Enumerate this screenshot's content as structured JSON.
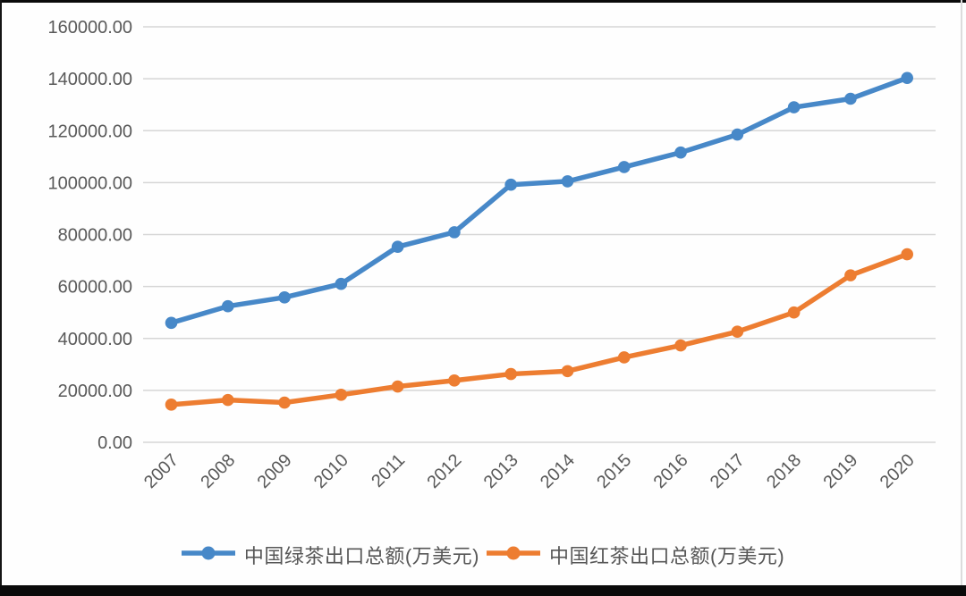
{
  "page": {
    "background": "#fefefe",
    "top_edge_color": "#0a0a0a",
    "bottom_bar_color": "#0a0a0a",
    "right_edge_color": "#dcdcdc"
  },
  "chart_data": {
    "type": "line",
    "title": "",
    "xlabel": "",
    "ylabel": "",
    "categories": [
      "2007",
      "2008",
      "2009",
      "2010",
      "2011",
      "2012",
      "2013",
      "2014",
      "2015",
      "2016",
      "2017",
      "2018",
      "2019",
      "2020"
    ],
    "series": [
      {
        "name": "中国绿茶出口总额(万美元)",
        "color": "#4788c8",
        "marker": "circle",
        "values": [
          46000,
          52400,
          55800,
          61000,
          75300,
          80900,
          99200,
          100500,
          106000,
          111600,
          118500,
          129000,
          132300,
          140300
        ]
      },
      {
        "name": "中国红茶出口总额(万美元)",
        "color": "#ed7d31",
        "marker": "circle",
        "values": [
          14500,
          16300,
          15300,
          18300,
          21500,
          23800,
          26300,
          27400,
          32700,
          37300,
          42600,
          50000,
          64300,
          72400
        ]
      }
    ],
    "ylim": [
      0,
      160000
    ],
    "ytick_step": 20000,
    "ytick_labels": [
      "0.00",
      "20000.00",
      "40000.00",
      "60000.00",
      "80000.00",
      "100000.00",
      "120000.00",
      "140000.00",
      "160000.00"
    ],
    "grid": true,
    "gridline_color": "#d6d6d6",
    "axis_text_color": "#595959",
    "legend_position": "bottom"
  }
}
